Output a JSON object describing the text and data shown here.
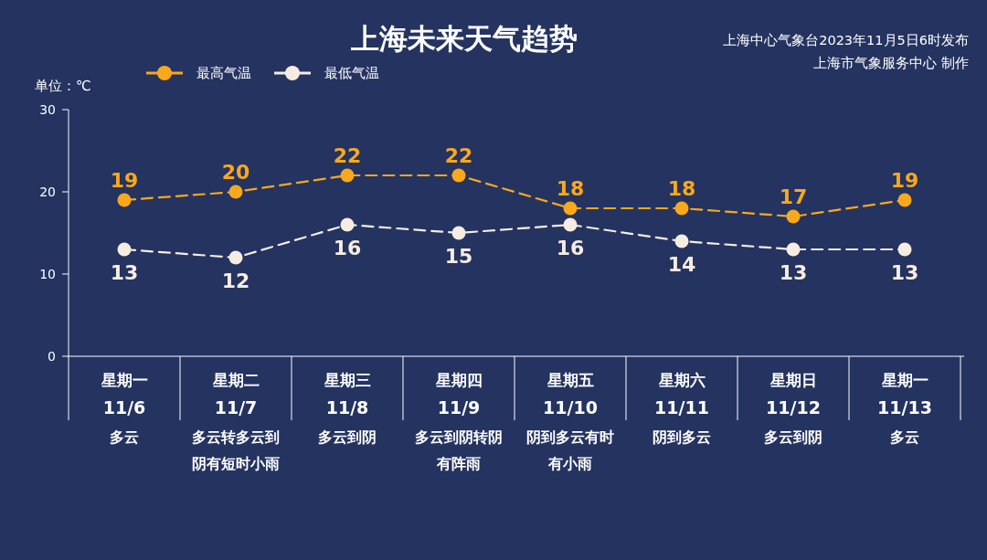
{
  "chart_data": {
    "type": "line",
    "title": "上海未来天气趋势",
    "ylabel": "单位：℃",
    "annotations": [
      "上海中心气象台2023年11月5日6时发布",
      "上海市气象服务中心 制作"
    ],
    "categories": [
      "星期一\n11/6\n多云",
      "星期二\n11/7\n多云转多云到阴有短时小雨",
      "星期三\n11/8\n多云到阴",
      "星期四\n11/9\n多云到阴转阴有阵雨",
      "星期五\n11/10\n阴到多云有时有小雨",
      "星期六\n11/11\n阴到多云",
      "星期日\n11/12\n多云到阴",
      "星期一\n11/13\n多云"
    ],
    "series": [
      {
        "name": "最高气温",
        "color": "#f9a81b",
        "values": [
          19,
          20,
          22,
          22,
          18,
          18,
          17,
          19
        ]
      },
      {
        "name": "最低气温",
        "color": "#f6ece2",
        "values": [
          13,
          12,
          16,
          15,
          16,
          14,
          13,
          13
        ]
      }
    ],
    "ylim": [
      0,
      30
    ],
    "yticks": [
      0,
      10,
      20,
      30
    ],
    "legend": "top left",
    "marker": "circle",
    "line_style": "dashed",
    "data_labels": true
  }
}
